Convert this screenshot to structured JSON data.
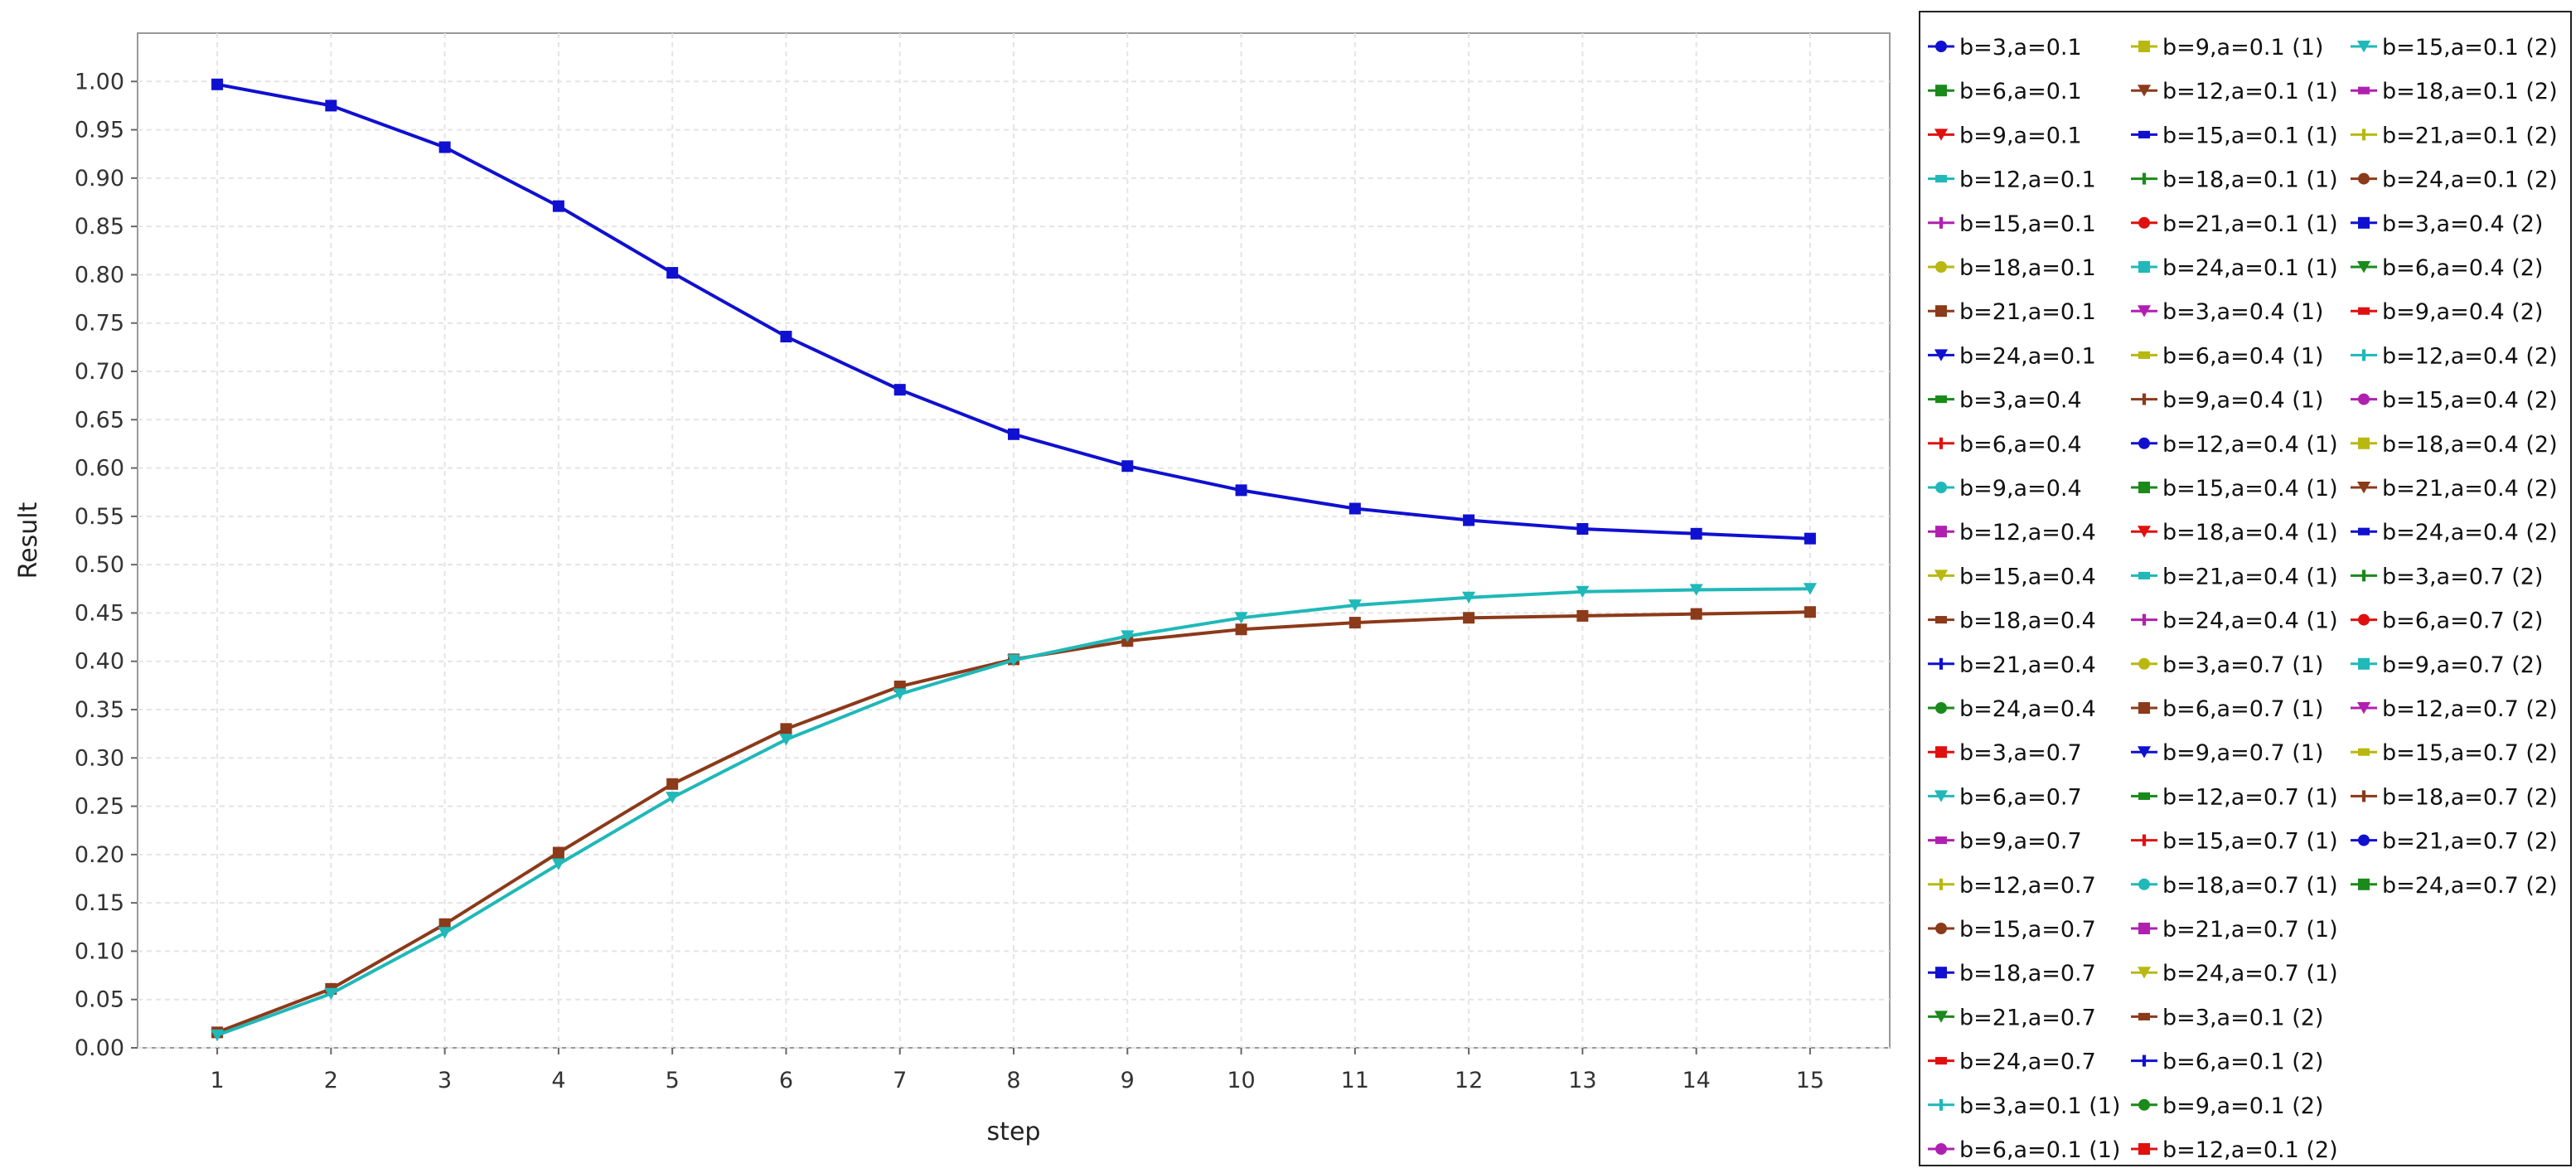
{
  "chart_data": {
    "type": "line",
    "xlabel": "step",
    "ylabel": "Result",
    "xlim": [
      0.3,
      15.7
    ],
    "ylim": [
      0.0,
      1.05
    ],
    "x": [
      1,
      2,
      3,
      4,
      5,
      6,
      7,
      8,
      9,
      10,
      11,
      12,
      13,
      14,
      15
    ],
    "x_ticks": [
      "1",
      "2",
      "3",
      "4",
      "5",
      "6",
      "7",
      "8",
      "9",
      "10",
      "11",
      "12",
      "13",
      "14",
      "15"
    ],
    "y_ticks": [
      "0.00",
      "0.05",
      "0.10",
      "0.15",
      "0.20",
      "0.25",
      "0.30",
      "0.35",
      "0.40",
      "0.45",
      "0.50",
      "0.55",
      "0.60",
      "0.65",
      "0.70",
      "0.75",
      "0.80",
      "0.85",
      "0.90",
      "0.95",
      "1.00"
    ],
    "grid": true,
    "legend_position": "right",
    "series": [
      {
        "name": "b=3,a=0.4 (2)",
        "color": "#1010d0",
        "marker": "square",
        "values": [
          0.997,
          0.975,
          0.932,
          0.871,
          0.802,
          0.736,
          0.681,
          0.635,
          0.602,
          0.577,
          0.558,
          0.546,
          0.537,
          0.532,
          0.527
        ]
      },
      {
        "name": "b=6,a=0.7 (1)",
        "color": "#8b3a1a",
        "marker": "square",
        "values": [
          0.016,
          0.061,
          0.128,
          0.202,
          0.273,
          0.33,
          0.374,
          0.402,
          0.421,
          0.433,
          0.44,
          0.445,
          0.447,
          0.449,
          0.451
        ]
      },
      {
        "name": "b=15,a=0.1 (2)",
        "color": "#20b8b8",
        "marker": "triangle-down",
        "values": [
          0.013,
          0.056,
          0.119,
          0.19,
          0.259,
          0.319,
          0.366,
          0.401,
          0.426,
          0.445,
          0.458,
          0.466,
          0.472,
          0.474,
          0.475
        ]
      }
    ],
    "legend_items": [
      {
        "label": "b=3,a=0.1",
        "color": "#1010d0",
        "marker": "circle"
      },
      {
        "label": "b=6,a=0.1",
        "color": "#1a8a1a",
        "marker": "square"
      },
      {
        "label": "b=9,a=0.1",
        "color": "#e01010",
        "marker": "triangle-down"
      },
      {
        "label": "b=12,a=0.1",
        "color": "#20b8b8",
        "marker": "square-h"
      },
      {
        "label": "b=15,a=0.1",
        "color": "#b020b0",
        "marker": "plus"
      },
      {
        "label": "b=18,a=0.1",
        "color": "#b8b810",
        "marker": "circle"
      },
      {
        "label": "b=21,a=0.1",
        "color": "#8b3a1a",
        "marker": "square"
      },
      {
        "label": "b=24,a=0.1",
        "color": "#1010d0",
        "marker": "triangle-down"
      },
      {
        "label": "b=3,a=0.4",
        "color": "#1a8a1a",
        "marker": "square-h"
      },
      {
        "label": "b=6,a=0.4",
        "color": "#e01010",
        "marker": "plus"
      },
      {
        "label": "b=9,a=0.4",
        "color": "#20b8b8",
        "marker": "circle"
      },
      {
        "label": "b=12,a=0.4",
        "color": "#b020b0",
        "marker": "square"
      },
      {
        "label": "b=15,a=0.4",
        "color": "#b8b810",
        "marker": "triangle-down"
      },
      {
        "label": "b=18,a=0.4",
        "color": "#8b3a1a",
        "marker": "square-h"
      },
      {
        "label": "b=21,a=0.4",
        "color": "#1010d0",
        "marker": "plus"
      },
      {
        "label": "b=24,a=0.4",
        "color": "#1a8a1a",
        "marker": "circle"
      },
      {
        "label": "b=3,a=0.7",
        "color": "#e01010",
        "marker": "square"
      },
      {
        "label": "b=6,a=0.7",
        "color": "#20b8b8",
        "marker": "triangle-down"
      },
      {
        "label": "b=9,a=0.7",
        "color": "#b020b0",
        "marker": "square-h"
      },
      {
        "label": "b=12,a=0.7",
        "color": "#b8b810",
        "marker": "plus"
      },
      {
        "label": "b=15,a=0.7",
        "color": "#8b3a1a",
        "marker": "circle"
      },
      {
        "label": "b=18,a=0.7",
        "color": "#1010d0",
        "marker": "square"
      },
      {
        "label": "b=21,a=0.7",
        "color": "#1a8a1a",
        "marker": "triangle-down"
      },
      {
        "label": "b=24,a=0.7",
        "color": "#e01010",
        "marker": "square-h"
      },
      {
        "label": "b=3,a=0.1 (1)",
        "color": "#20b8b8",
        "marker": "plus"
      },
      {
        "label": "b=6,a=0.1 (1)",
        "color": "#b020b0",
        "marker": "circle"
      },
      {
        "label": "b=9,a=0.1 (1)",
        "color": "#b8b810",
        "marker": "square"
      },
      {
        "label": "b=12,a=0.1 (1)",
        "color": "#8b3a1a",
        "marker": "triangle-down"
      },
      {
        "label": "b=15,a=0.1 (1)",
        "color": "#1010d0",
        "marker": "square-h"
      },
      {
        "label": "b=18,a=0.1 (1)",
        "color": "#1a8a1a",
        "marker": "plus"
      },
      {
        "label": "b=21,a=0.1 (1)",
        "color": "#e01010",
        "marker": "circle"
      },
      {
        "label": "b=24,a=0.1 (1)",
        "color": "#20b8b8",
        "marker": "square"
      },
      {
        "label": "b=3,a=0.4 (1)",
        "color": "#b020b0",
        "marker": "triangle-down"
      },
      {
        "label": "b=6,a=0.4 (1)",
        "color": "#b8b810",
        "marker": "square-h"
      },
      {
        "label": "b=9,a=0.4 (1)",
        "color": "#8b3a1a",
        "marker": "plus"
      },
      {
        "label": "b=12,a=0.4 (1)",
        "color": "#1010d0",
        "marker": "circle"
      },
      {
        "label": "b=15,a=0.4 (1)",
        "color": "#1a8a1a",
        "marker": "square"
      },
      {
        "label": "b=18,a=0.4 (1)",
        "color": "#e01010",
        "marker": "triangle-down"
      },
      {
        "label": "b=21,a=0.4 (1)",
        "color": "#20b8b8",
        "marker": "square-h"
      },
      {
        "label": "b=24,a=0.4 (1)",
        "color": "#b020b0",
        "marker": "plus"
      },
      {
        "label": "b=3,a=0.7 (1)",
        "color": "#b8b810",
        "marker": "circle"
      },
      {
        "label": "b=6,a=0.7 (1)",
        "color": "#8b3a1a",
        "marker": "square"
      },
      {
        "label": "b=9,a=0.7 (1)",
        "color": "#1010d0",
        "marker": "triangle-down"
      },
      {
        "label": "b=12,a=0.7 (1)",
        "color": "#1a8a1a",
        "marker": "square-h"
      },
      {
        "label": "b=15,a=0.7 (1)",
        "color": "#e01010",
        "marker": "plus"
      },
      {
        "label": "b=18,a=0.7 (1)",
        "color": "#20b8b8",
        "marker": "circle"
      },
      {
        "label": "b=21,a=0.7 (1)",
        "color": "#b020b0",
        "marker": "square"
      },
      {
        "label": "b=24,a=0.7 (1)",
        "color": "#b8b810",
        "marker": "triangle-down"
      },
      {
        "label": "b=3,a=0.1 (2)",
        "color": "#8b3a1a",
        "marker": "square-h"
      },
      {
        "label": "b=6,a=0.1 (2)",
        "color": "#1010d0",
        "marker": "plus"
      },
      {
        "label": "b=9,a=0.1 (2)",
        "color": "#1a8a1a",
        "marker": "circle"
      },
      {
        "label": "b=12,a=0.1 (2)",
        "color": "#e01010",
        "marker": "square"
      },
      {
        "label": "b=15,a=0.1 (2)",
        "color": "#20b8b8",
        "marker": "triangle-down"
      },
      {
        "label": "b=18,a=0.1 (2)",
        "color": "#b020b0",
        "marker": "square-h"
      },
      {
        "label": "b=21,a=0.1 (2)",
        "color": "#b8b810",
        "marker": "plus"
      },
      {
        "label": "b=24,a=0.1 (2)",
        "color": "#8b3a1a",
        "marker": "circle"
      },
      {
        "label": "b=3,a=0.4 (2)",
        "color": "#1010d0",
        "marker": "square"
      },
      {
        "label": "b=6,a=0.4 (2)",
        "color": "#1a8a1a",
        "marker": "triangle-down"
      },
      {
        "label": "b=9,a=0.4 (2)",
        "color": "#e01010",
        "marker": "square-h"
      },
      {
        "label": "b=12,a=0.4 (2)",
        "color": "#20b8b8",
        "marker": "plus"
      },
      {
        "label": "b=15,a=0.4 (2)",
        "color": "#b020b0",
        "marker": "circle"
      },
      {
        "label": "b=18,a=0.4 (2)",
        "color": "#b8b810",
        "marker": "square"
      },
      {
        "label": "b=21,a=0.4 (2)",
        "color": "#8b3a1a",
        "marker": "triangle-down"
      },
      {
        "label": "b=24,a=0.4 (2)",
        "color": "#1010d0",
        "marker": "square-h"
      },
      {
        "label": "b=3,a=0.7 (2)",
        "color": "#1a8a1a",
        "marker": "plus"
      },
      {
        "label": "b=6,a=0.7 (2)",
        "color": "#e01010",
        "marker": "circle"
      },
      {
        "label": "b=9,a=0.7 (2)",
        "color": "#20b8b8",
        "marker": "square"
      },
      {
        "label": "b=12,a=0.7 (2)",
        "color": "#b020b0",
        "marker": "triangle-down"
      },
      {
        "label": "b=15,a=0.7 (2)",
        "color": "#b8b810",
        "marker": "square-h"
      },
      {
        "label": "b=18,a=0.7 (2)",
        "color": "#8b3a1a",
        "marker": "plus"
      },
      {
        "label": "b=21,a=0.7 (2)",
        "color": "#1010d0",
        "marker": "circle"
      },
      {
        "label": "b=24,a=0.7 (2)",
        "color": "#1a8a1a",
        "marker": "square"
      }
    ]
  }
}
